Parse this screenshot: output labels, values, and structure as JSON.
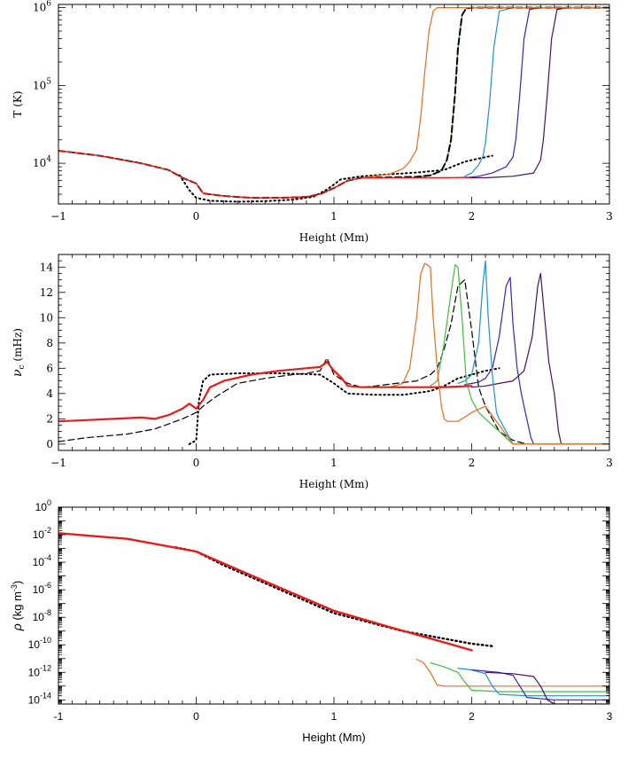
{
  "chart_data": [
    {
      "type": "line",
      "ylabel": "T (K)",
      "xlabel": "Height (Mm)",
      "xlim": [
        -1,
        3
      ],
      "ylim": [
        3000,
        1100000
      ],
      "yscale": "log",
      "xticks": [
        -1,
        0,
        1,
        2,
        3
      ],
      "xtick_labels": [
        "−1",
        "0",
        "1",
        "2",
        "3"
      ],
      "yticks": [
        {
          "value": 10000,
          "base": "10",
          "exp": "4"
        },
        {
          "value": 100000,
          "base": "10",
          "exp": "5"
        },
        {
          "value": 1000000,
          "base": "10",
          "exp": "6"
        }
      ],
      "grid": false,
      "series": [
        {
          "color": "#000000",
          "style": "dotted",
          "width": 2,
          "x": [
            -0.12,
            -0.05,
            0.0,
            0.1,
            0.3,
            0.5,
            0.7,
            0.85,
            0.95,
            1.05,
            1.2,
            1.4,
            1.6,
            1.8,
            1.95,
            2.05,
            2.15
          ],
          "y": [
            7000,
            4500,
            3600,
            3300,
            3200,
            3250,
            3400,
            3700,
            4600,
            6200,
            6800,
            7200,
            7600,
            8200,
            10500,
            11500,
            12500
          ]
        },
        {
          "color": "#4b0e5e",
          "style": "solid",
          "width": 1.2,
          "x": [
            1.95,
            2.1,
            2.3,
            2.45,
            2.5,
            2.52,
            2.55,
            2.58,
            2.62,
            2.7,
            3.0
          ],
          "y": [
            6500,
            6500,
            6800,
            7500,
            11000,
            20000,
            80000,
            400000,
            950000,
            1000000,
            1000000
          ]
        },
        {
          "color": "#3b1fc4",
          "style": "solid",
          "width": 1.2,
          "x": [
            1.95,
            2.05,
            2.15,
            2.25,
            2.3,
            2.32,
            2.35,
            2.38,
            2.42,
            2.5,
            3.0
          ],
          "y": [
            6500,
            6800,
            7500,
            9000,
            12000,
            20000,
            80000,
            400000,
            950000,
            1000000,
            1000000
          ]
        },
        {
          "color": "#1e90e0",
          "style": "solid",
          "width": 1.2,
          "x": [
            1.95,
            2.0,
            2.05,
            2.08,
            2.1,
            2.13,
            2.16,
            2.2,
            2.3,
            3.0
          ],
          "y": [
            6800,
            7500,
            9500,
            12000,
            18000,
            60000,
            300000,
            900000,
            1000000,
            1000000
          ]
        },
        {
          "color": "#3ac03a",
          "style": "solid",
          "width": 1.2,
          "x": [
            1.6,
            1.7,
            1.78,
            1.82,
            1.85,
            1.88,
            1.9,
            1.93,
            1.96,
            2.0,
            3.0
          ],
          "y": [
            6600,
            7000,
            8000,
            11000,
            20000,
            80000,
            300000,
            800000,
            980000,
            1000000,
            1000000
          ]
        },
        {
          "color": "#000000",
          "style": "dashed",
          "width": 2,
          "x": [
            -1.0,
            -0.7,
            -0.4,
            -0.2,
            -0.1,
            0.0,
            0.05,
            0.2,
            0.4,
            0.6,
            0.8,
            0.9,
            1.0,
            1.1,
            1.2,
            1.4,
            1.6,
            1.7,
            1.78,
            1.82,
            1.85,
            1.88,
            1.9,
            1.93,
            1.96,
            2.0,
            3.0
          ],
          "y": [
            14500,
            12500,
            10000,
            8200,
            6500,
            5500,
            4100,
            3800,
            3600,
            3600,
            3700,
            4000,
            4800,
            6000,
            6500,
            6600,
            6700,
            7000,
            8000,
            11000,
            20000,
            80000,
            300000,
            800000,
            980000,
            1000000,
            1000000
          ]
        },
        {
          "color": "#ee6a1c",
          "style": "solid",
          "width": 1.2,
          "x": [
            1.2,
            1.4,
            1.5,
            1.55,
            1.6,
            1.63,
            1.66,
            1.69,
            1.72,
            1.75,
            3.0
          ],
          "y": [
            6500,
            7200,
            8500,
            10500,
            15000,
            40000,
            150000,
            500000,
            900000,
            1000000,
            1000000
          ]
        },
        {
          "color": "#e81b1b",
          "style": "solid",
          "width": 1.4,
          "x": [
            -1.0,
            -0.7,
            -0.4,
            -0.2,
            -0.1,
            0.0,
            0.05,
            0.2,
            0.4,
            0.6,
            0.8,
            0.9,
            1.0,
            1.1,
            1.2,
            1.4,
            1.6,
            1.8,
            2.0
          ],
          "y": [
            14500,
            12500,
            10000,
            8200,
            6500,
            5500,
            4100,
            3800,
            3600,
            3600,
            3700,
            4000,
            4800,
            6000,
            6500,
            6500,
            6500,
            6500,
            6600
          ]
        }
      ]
    },
    {
      "type": "line",
      "ylabel": "νₒ (mHz)",
      "ylabel_main": "ν",
      "ylabel_sub": "c",
      "ylabel_unit": " (mHz)",
      "xlabel": "Height (Mm)",
      "xlim": [
        -1,
        3
      ],
      "ylim": [
        -0.5,
        15
      ],
      "yscale": "linear",
      "xticks": [
        -1,
        0,
        1,
        2,
        3
      ],
      "xtick_labels": [
        "−1",
        "0",
        "1",
        "2",
        "3"
      ],
      "yticks": [
        0,
        2,
        4,
        6,
        8,
        10,
        12,
        14
      ],
      "ytick_labels": [
        "0",
        "2",
        "4",
        "6",
        "8",
        "10",
        "12",
        "14"
      ],
      "grid": false,
      "series": [
        {
          "color": "#000000",
          "style": "dotted",
          "width": 2,
          "x": [
            -0.05,
            0.0,
            0.02,
            0.05,
            0.1,
            0.3,
            0.6,
            0.9,
            1.0,
            1.1,
            1.3,
            1.5,
            1.7,
            1.8,
            1.9,
            2.0,
            2.1,
            2.2
          ],
          "y": [
            0.0,
            0.3,
            3.5,
            5.0,
            5.5,
            5.6,
            5.6,
            5.5,
            4.8,
            4.0,
            3.9,
            3.9,
            4.2,
            4.6,
            5.2,
            5.5,
            5.8,
            6.0
          ]
        },
        {
          "color": "#000000",
          "style": "dashed",
          "width": 1.2,
          "x": [
            -1.0,
            -0.8,
            -0.5,
            -0.3,
            -0.1,
            0.0,
            0.05,
            0.15,
            0.3,
            0.5,
            0.7,
            0.8,
            0.9,
            0.95,
            1.0,
            1.1,
            1.2,
            1.3,
            1.45,
            1.6,
            1.7,
            1.75,
            1.8,
            1.85,
            1.9,
            1.95,
            2.0,
            2.05,
            2.1,
            2.2,
            2.3,
            2.4
          ],
          "y": [
            0.2,
            0.5,
            0.8,
            1.2,
            2.0,
            2.5,
            3.0,
            3.8,
            4.8,
            5.2,
            5.5,
            5.6,
            5.8,
            6.8,
            5.5,
            4.8,
            4.5,
            4.6,
            4.8,
            5.0,
            5.5,
            6.0,
            7.5,
            9.5,
            12.5,
            13.0,
            9.0,
            4.5,
            3.0,
            1.0,
            0.3,
            0.0
          ]
        },
        {
          "color": "#4b0e5e",
          "style": "solid",
          "width": 1.2,
          "x": [
            2.0,
            2.1,
            2.2,
            2.3,
            2.38,
            2.44,
            2.48,
            2.5,
            2.53,
            2.56,
            2.6,
            2.63,
            2.65,
            3.0
          ],
          "y": [
            4.5,
            4.6,
            4.8,
            5.0,
            5.8,
            8.5,
            12.5,
            13.5,
            10.0,
            6.5,
            4.0,
            1.0,
            0.0,
            0.0
          ]
        },
        {
          "color": "#3b1fc4",
          "style": "solid",
          "width": 1.2,
          "x": [
            1.95,
            2.05,
            2.1,
            2.15,
            2.2,
            2.25,
            2.28,
            2.3,
            2.33,
            2.36,
            2.4,
            2.43,
            2.45,
            3.0
          ],
          "y": [
            4.7,
            4.9,
            5.2,
            6.0,
            8.5,
            12.5,
            13.2,
            9.5,
            6.0,
            4.0,
            2.0,
            0.5,
            0.0,
            0.0
          ]
        },
        {
          "color": "#1e90e0",
          "style": "solid",
          "width": 1.2,
          "x": [
            1.9,
            1.95,
            2.0,
            2.05,
            2.08,
            2.1,
            2.12,
            2.15,
            2.18,
            2.2,
            2.25,
            2.3,
            3.0
          ],
          "y": [
            4.8,
            5.0,
            5.5,
            8.0,
            12.5,
            14.5,
            10.0,
            5.5,
            2.5,
            2.0,
            1.0,
            0.0,
            0.0
          ]
        },
        {
          "color": "#3ac03a",
          "style": "solid",
          "width": 1.2,
          "x": [
            1.7,
            1.75,
            1.8,
            1.85,
            1.88,
            1.9,
            1.93,
            1.96,
            2.0,
            2.05,
            2.1,
            2.2,
            2.3,
            3.0
          ],
          "y": [
            4.6,
            5.0,
            8.0,
            12.0,
            14.2,
            14.0,
            10.0,
            5.0,
            3.5,
            2.5,
            2.0,
            1.0,
            0.0,
            0.0
          ]
        },
        {
          "color": "#ee6a1c",
          "style": "solid",
          "width": 1.2,
          "x": [
            1.4,
            1.5,
            1.55,
            1.6,
            1.63,
            1.66,
            1.7,
            1.72,
            1.75,
            1.78,
            1.8,
            1.82,
            1.9,
            2.0,
            2.1,
            2.2,
            2.3,
            3.0
          ],
          "y": [
            4.5,
            4.8,
            6.0,
            10.0,
            13.5,
            14.3,
            14.0,
            10.0,
            6.0,
            3.0,
            2.0,
            1.8,
            1.8,
            2.5,
            3.0,
            1.5,
            0.0,
            0.0
          ]
        },
        {
          "color": "#e81b1b",
          "style": "solid",
          "width": 2.2,
          "x": [
            -1.0,
            -0.8,
            -0.6,
            -0.4,
            -0.3,
            -0.2,
            -0.1,
            -0.05,
            0.0,
            0.05,
            0.1,
            0.2,
            0.4,
            0.6,
            0.8,
            0.9,
            0.95,
            1.0,
            1.05,
            1.1,
            1.2,
            1.4,
            1.6,
            1.8,
            2.0
          ],
          "y": [
            1.8,
            1.9,
            2.0,
            2.1,
            2.0,
            2.3,
            2.8,
            3.2,
            2.8,
            3.5,
            4.5,
            5.0,
            5.5,
            5.8,
            6.0,
            6.1,
            6.5,
            5.8,
            5.3,
            4.6,
            4.5,
            4.5,
            4.5,
            4.5,
            4.6
          ]
        }
      ]
    },
    {
      "type": "line",
      "ylabel": "ρ (kg m⁻³)",
      "ylabel_main": "ρ",
      "ylabel_unit": " (kg m",
      "ylabel_unit_exp": "-3",
      "ylabel_close": ")",
      "xlabel": "Height (Mm)",
      "xlim": [
        -1,
        3
      ],
      "ylim": [
        5e-15,
        1
      ],
      "yscale": "log",
      "xticks": [
        -1,
        0,
        1,
        2,
        3
      ],
      "xtick_labels": [
        "-1",
        "0",
        "1",
        "2",
        "3"
      ],
      "yticks": [
        {
          "value": 1,
          "base": "10",
          "exp": "0"
        },
        {
          "value": 0.01,
          "base": "10",
          "exp": "-2"
        },
        {
          "value": 0.0001,
          "base": "10",
          "exp": "-4"
        },
        {
          "value": 1e-06,
          "base": "10",
          "exp": "-6"
        },
        {
          "value": 1e-08,
          "base": "10",
          "exp": "-8"
        },
        {
          "value": 1e-10,
          "base": "10",
          "exp": "-10"
        },
        {
          "value": 1e-12,
          "base": "10",
          "exp": "-12"
        },
        {
          "value": 1e-14,
          "base": "10",
          "exp": "-14"
        }
      ],
      "grid": false,
      "series": [
        {
          "color": "#000000",
          "style": "dotted",
          "width": 2.4,
          "x": [
            -0.15,
            0.0,
            0.2,
            0.5,
            1.0,
            1.5,
            2.0,
            2.15
          ],
          "y": [
            0.0012,
            0.0006,
            6e-05,
            3e-06,
            2e-08,
            1e-09,
            1.2e-10,
            8e-11
          ]
        },
        {
          "color": "#ee6a1c",
          "style": "solid",
          "width": 1.2,
          "x": [
            1.6,
            1.65,
            1.7,
            1.75,
            1.8,
            2.0,
            3.0
          ],
          "y": [
            9e-12,
            5e-12,
            1e-12,
            1.2e-13,
            1e-13,
            1e-13,
            1e-13
          ]
        },
        {
          "color": "#3ac03a",
          "style": "solid",
          "width": 1.2,
          "x": [
            1.7,
            1.8,
            1.9,
            1.95,
            2.0,
            2.2,
            3.0
          ],
          "y": [
            5e-12,
            2.5e-12,
            1e-12,
            2e-13,
            5e-14,
            4e-14,
            4e-14
          ]
        },
        {
          "color": "#1e90e0",
          "style": "solid",
          "width": 1.2,
          "x": [
            1.9,
            2.0,
            2.1,
            2.15,
            2.2,
            2.4,
            3.0
          ],
          "y": [
            2e-12,
            1.5e-12,
            8e-13,
            1e-13,
            2.5e-14,
            2e-14,
            2e-14
          ]
        },
        {
          "color": "#3b1fc4",
          "style": "solid",
          "width": 1.2,
          "x": [
            2.0,
            2.2,
            2.3,
            2.35,
            2.4,
            2.6,
            3.0
          ],
          "y": [
            1.5e-12,
            1e-12,
            6e-13,
            1e-13,
            1.5e-14,
            1e-14,
            1e-14
          ]
        },
        {
          "color": "#4b0e5e",
          "style": "solid",
          "width": 1.2,
          "x": [
            2.1,
            2.3,
            2.45,
            2.5,
            2.55,
            2.6,
            3.0
          ],
          "y": [
            1e-12,
            8e-13,
            5e-13,
            1e-13,
            1e-14,
            5e-15,
            5e-15
          ]
        },
        {
          "color": "#e81b1b",
          "style": "solid",
          "width": 2.4,
          "x": [
            -1.0,
            -0.5,
            0.0,
            0.3,
            0.6,
            1.0,
            1.4,
            1.8,
            2.0
          ],
          "y": [
            0.013,
            0.005,
            0.0006,
            3e-05,
            1.5e-06,
            3e-08,
            2e-09,
            1.5e-10,
            4e-11
          ]
        }
      ]
    }
  ]
}
